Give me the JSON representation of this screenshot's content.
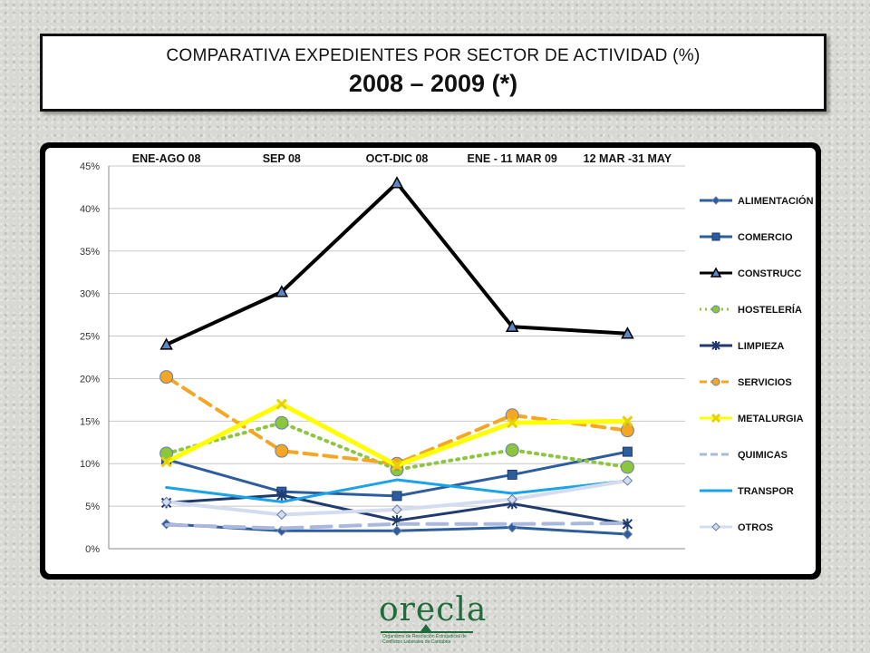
{
  "title": {
    "line1": "COMPARATIVA EXPEDIENTES POR SECTOR DE ACTIVIDAD (%)",
    "line2": "2008 – 2009 (*)"
  },
  "logo": {
    "word": "orecla",
    "subtitle": "Organismo de Resolución Extrajudicial de Conflictos Laborales de Cantabria"
  },
  "chart_data": {
    "type": "line",
    "categories": [
      "ENE-AGO 08",
      "SEP 08",
      "OCT-DIC 08",
      "ENE - 11 MAR 09",
      "12 MAR -31 MAY"
    ],
    "yticks": [
      "0%",
      "5%",
      "10%",
      "15%",
      "20%",
      "25%",
      "30%",
      "35%",
      "40%",
      "45%"
    ],
    "ylim": [
      0,
      45
    ],
    "grid": true,
    "legend_position": "right",
    "series": [
      {
        "name": "ALIMENTACIÓN",
        "values": [
          2.9,
          2.1,
          2.1,
          2.5,
          1.7
        ],
        "color": "#2e5d9e",
        "marker": "diamond",
        "dash": "solid",
        "width": 3
      },
      {
        "name": "COMERCIO",
        "values": [
          10.5,
          6.7,
          6.2,
          8.7,
          11.4
        ],
        "color": "#2e5d9e",
        "marker": "square",
        "dash": "solid",
        "width": 3
      },
      {
        "name": "CONSTRUCC",
        "values": [
          24.0,
          30.2,
          43.0,
          26.1,
          25.3
        ],
        "color": "#000000",
        "marker": "triangle",
        "dash": "solid",
        "width": 4
      },
      {
        "name": "HOSTELERÍA",
        "values": [
          11.2,
          14.8,
          9.3,
          11.6,
          9.6
        ],
        "color": "#8cc63f",
        "marker": "circle",
        "dash": "dot",
        "width": 4
      },
      {
        "name": "LIMPIEZA",
        "values": [
          5.4,
          6.3,
          3.3,
          5.3,
          2.9
        ],
        "color": "#1f3a6e",
        "marker": "star",
        "dash": "solid",
        "width": 3
      },
      {
        "name": "SERVICIOS",
        "values": [
          20.2,
          11.5,
          10.0,
          15.7,
          13.9
        ],
        "color": "#f5a623",
        "marker": "circle",
        "dash": "dash",
        "width": 4
      },
      {
        "name": "METALURGIA",
        "values": [
          10.2,
          17.0,
          9.8,
          14.8,
          15.0
        ],
        "color": "#ffff00",
        "marker": "x",
        "dash": "solid",
        "width": 5
      },
      {
        "name": "QUIMICAS",
        "values": [
          2.8,
          2.4,
          2.9,
          2.9,
          3.0
        ],
        "color": "#a9b8dc",
        "marker": "none",
        "dash": "longdash",
        "width": 4
      },
      {
        "name": "TRANSPOR",
        "values": [
          7.2,
          5.5,
          8.1,
          6.5,
          8.0
        ],
        "color": "#1aa3e8",
        "marker": "none",
        "dash": "solid",
        "width": 3
      },
      {
        "name": "OTROS",
        "values": [
          5.5,
          4.0,
          4.6,
          5.8,
          8.0
        ],
        "color": "#d4dcf0",
        "marker": "diamond",
        "dash": "solid",
        "width": 4
      }
    ]
  }
}
